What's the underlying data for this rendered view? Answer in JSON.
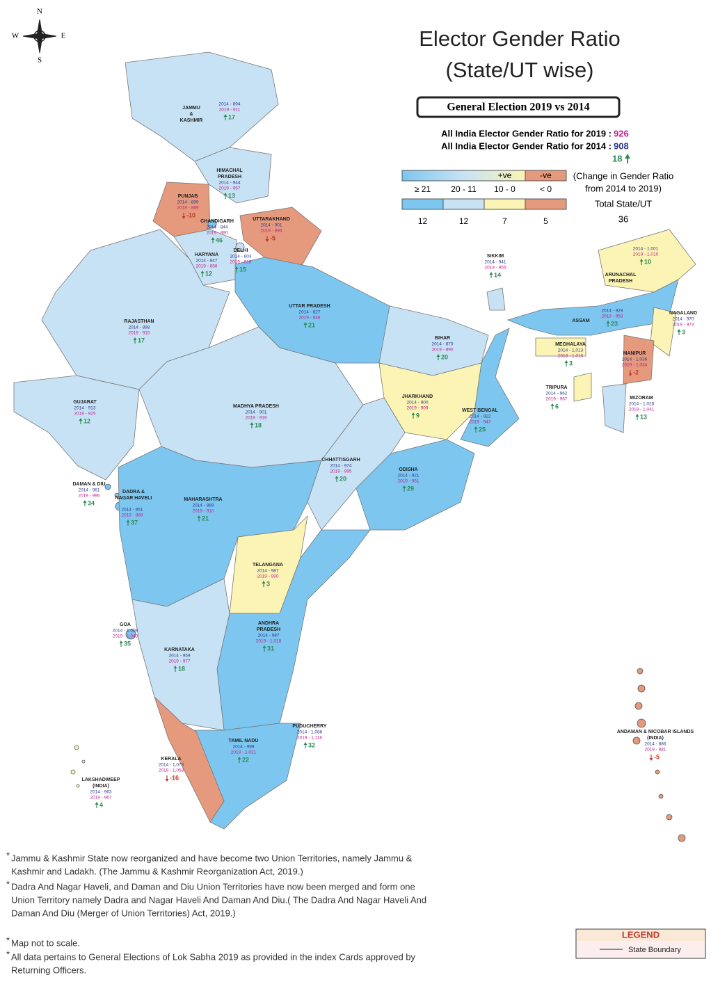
{
  "compass": {
    "n": "N",
    "s": "S",
    "e": "E",
    "w": "W"
  },
  "title": [
    "Elector Gender Ratio",
    "(State/UT wise)"
  ],
  "subtitle": "General Election 2019 vs 2014",
  "all_india": {
    "label_2019": "All India Elector Gender Ratio for 2019 :",
    "value_2019": 926,
    "label_2014": "All India Elector Gender Ratio for 2014 :",
    "value_2014": 908,
    "change": 18
  },
  "scale": {
    "positive": "+ve",
    "negative": "-ve",
    "note": [
      "(Change in Gender Ratio",
      "from 2014 to 2019)"
    ],
    "total_label": "Total State/UT",
    "total": 36,
    "classes": [
      {
        "label": "≥ 21",
        "color": "#7dc6ef",
        "count": 12
      },
      {
        "label": "20 - 11",
        "color": "#c8e2f5",
        "count": 12
      },
      {
        "label": "10 - 0",
        "color": "#fbf4b4",
        "count": 7
      },
      {
        "label": "< 0",
        "color": "#e5997d",
        "count": 5
      }
    ]
  },
  "states": [
    {
      "name": [
        "JAMMU",
        "&",
        "KASHMIR"
      ],
      "r2014": "2014 - 894",
      "r2019": "2019 - 911",
      "change": 17,
      "color": "#c8e2f5"
    },
    {
      "name": [
        "HIMACHAL",
        "PRADESH"
      ],
      "r2014": "2014 - 944",
      "r2019": "2019 - 957",
      "change": 13,
      "color": "#c8e2f5"
    },
    {
      "name": [
        "PUNJAB"
      ],
      "r2014": "2014 - 899",
      "r2019": "2019 - 889",
      "change": -10,
      "color": "#e5997d"
    },
    {
      "name": [
        "CHANDIGARH"
      ],
      "r2014": "2014 - 844",
      "r2019": "2019 - 890",
      "change": 46,
      "color": "#7dc6ef"
    },
    {
      "name": [
        "UTTARAKHAND"
      ],
      "r2014": "2014 - 901",
      "r2019": "2019 - 896",
      "change": -5,
      "color": "#e5997d"
    },
    {
      "name": [
        "HARYANA"
      ],
      "r2014": "2014 - 847",
      "r2019": "2019 - 858",
      "change": 12,
      "color": "#c8e2f5"
    },
    {
      "name": [
        "DELHI"
      ],
      "r2014": "2014 - 803",
      "r2019": "2019 - 818",
      "change": 15,
      "color": "#c8e2f5"
    },
    {
      "name": [
        "RAJASTHAN"
      ],
      "r2014": "2014 - 898",
      "r2019": "2019 - 915",
      "change": 17,
      "color": "#c8e2f5"
    },
    {
      "name": [
        "UTTAR PRADESH"
      ],
      "r2014": "2014 - 827",
      "r2019": "2019 - 848",
      "change": 21,
      "color": "#7dc6ef"
    },
    {
      "name": [
        "SIKKIM"
      ],
      "r2014": "2014 - 941",
      "r2019": "2019 - 955",
      "change": 14,
      "color": "#c8e2f5"
    },
    {
      "name": [
        "ARUNACHAL",
        "PRADESH"
      ],
      "r2014": "2014 - 1,001",
      "r2019": "2019 - 1,010",
      "change": 10,
      "color": "#fbf4b4"
    },
    {
      "name": [
        "BIHAR"
      ],
      "r2014": "2014 - 870",
      "r2019": "2019 - 890",
      "change": 20,
      "color": "#c8e2f5"
    },
    {
      "name": [
        "ASSAM"
      ],
      "r2014": "2014 - 929",
      "r2019": "2019 - 953",
      "change": 23,
      "color": "#7dc6ef"
    },
    {
      "name": [
        "NAGALAND"
      ],
      "r2014": "2014 - 970",
      "r2019": "2019 - 973",
      "change": 3,
      "color": "#fbf4b4"
    },
    {
      "name": [
        "MEGHALAYA"
      ],
      "r2014": "2014 - 1,013",
      "r2019": "2019 - 1,016",
      "change": 3,
      "color": "#fbf4b4"
    },
    {
      "name": [
        "GUJARAT"
      ],
      "r2014": "2014 - 913",
      "r2019": "2019 - 925",
      "change": 12,
      "color": "#c8e2f5"
    },
    {
      "name": [
        "JHARKHAND"
      ],
      "r2014": "2014 - 900",
      "r2019": "2019 - 909",
      "change": 9,
      "color": "#fbf4b4"
    },
    {
      "name": [
        "WEST BENGAL"
      ],
      "r2014": "2014 - 922",
      "r2019": "2019 - 947",
      "change": 25,
      "color": "#7dc6ef"
    },
    {
      "name": [
        "MANIPUR"
      ],
      "r2014": "2014 - 1,036",
      "r2019": "2019 - 1,034",
      "change": -2,
      "color": "#e5997d"
    },
    {
      "name": [
        "TRIPURA"
      ],
      "r2014": "2014 - 962",
      "r2019": "2019 - 967",
      "change": 6,
      "color": "#fbf4b4"
    },
    {
      "name": [
        "MIZORAM"
      ],
      "r2014": "2014 - 1,028",
      "r2019": "2019 - 1,041",
      "change": 13,
      "color": "#c8e2f5"
    },
    {
      "name": [
        "MADHYA PRADESH"
      ],
      "r2014": "2014 - 901",
      "r2019": "2019 - 919",
      "change": 18,
      "color": "#c8e2f5"
    },
    {
      "name": [
        "DAMAN & DIU"
      ],
      "r2014": "2014 - 961",
      "r2019": "2019 - 996",
      "change": 34,
      "color": "#7dc6ef"
    },
    {
      "name": [
        "DADRA &",
        "NAGAR HAVELI"
      ],
      "r2014": "2014 - 851",
      "r2019": "2019 - 888",
      "change": 37,
      "color": "#7dc6ef"
    },
    {
      "name": [
        "MAHARASHTRA"
      ],
      "r2014": "2014 - 889",
      "r2019": "2019 - 910",
      "change": 21,
      "color": "#7dc6ef"
    },
    {
      "name": [
        "CHHATTISGARH"
      ],
      "r2014": "2014 - 974",
      "r2019": "2019 - 995",
      "change": 20,
      "color": "#c8e2f5"
    },
    {
      "name": [
        "ODISHA"
      ],
      "r2014": "2014 - 921",
      "r2019": "2019 - 951",
      "change": 29,
      "color": "#7dc6ef"
    },
    {
      "name": [
        "TELANGANA"
      ],
      "r2014": "2014 - 987",
      "r2019": "2019 - 990",
      "change": 3,
      "color": "#fbf4b4"
    },
    {
      "name": [
        "GOA"
      ],
      "r2014": "2014 - 1,008",
      "r2019": "2019 - 1,043",
      "change": 35,
      "color": "#7dc6ef"
    },
    {
      "name": [
        "ANDHRA",
        "PRADESH"
      ],
      "r2014": "2014 - 987",
      "r2019": "2019 - 1,018",
      "change": 31,
      "color": "#7dc6ef"
    },
    {
      "name": [
        "KARNATAKA"
      ],
      "r2014": "2014 - 959",
      "r2019": "2019 - 977",
      "change": 18,
      "color": "#c8e2f5"
    },
    {
      "name": [
        "PUDUCHERRY"
      ],
      "r2014": "2014 - 1,086",
      "r2019": "2019 - 1,118",
      "change": 32,
      "color": "#7dc6ef"
    },
    {
      "name": [
        "TAMIL NADU"
      ],
      "r2014": "2014 - 999",
      "r2019": "2019 - 1,021",
      "change": 22,
      "color": "#7dc6ef"
    },
    {
      "name": [
        "KERALA"
      ],
      "r2014": "2014 - 1,073",
      "r2019": "2019 - 1,058",
      "change": -16,
      "color": "#e5997d"
    },
    {
      "name": [
        "LAKSHADWEEP",
        "(INDIA)"
      ],
      "r2014": "2014 - 963",
      "r2019": "2019 - 967",
      "change": 4,
      "color": "#fbf4b4"
    },
    {
      "name": [
        "ANDAMAN & NICOBAR ISLANDS",
        "(INDIA)"
      ],
      "r2014": "2014 - 886",
      "r2019": "2019 - 881",
      "change": -5,
      "color": "#e5997d"
    }
  ],
  "notes": [
    [
      "Jammu & Kashmir State now reorganized and have become two Union Territories, namely Jammu &",
      "Kashmir and Ladakh. (The Jammu & Kashmir Reorganization Act, 2019.)"
    ],
    [
      "Dadra And Nagar Haveli, and Daman and Diu Union Territories have now been merged and form one",
      "Union Territory namely Dadra and Nagar Haveli And Daman And Diu.( The Dadra And Nagar Haveli And",
      "Daman And Diu (Merger of Union Territories) Act, 2019.)"
    ],
    [
      "Map not to scale."
    ],
    [
      "All data pertains to General Elections of Lok Sabha 2019 as provided in the index Cards approved by",
      "Returning Officers."
    ]
  ],
  "legend": {
    "title": "LEGEND",
    "item": "State Boundary"
  }
}
